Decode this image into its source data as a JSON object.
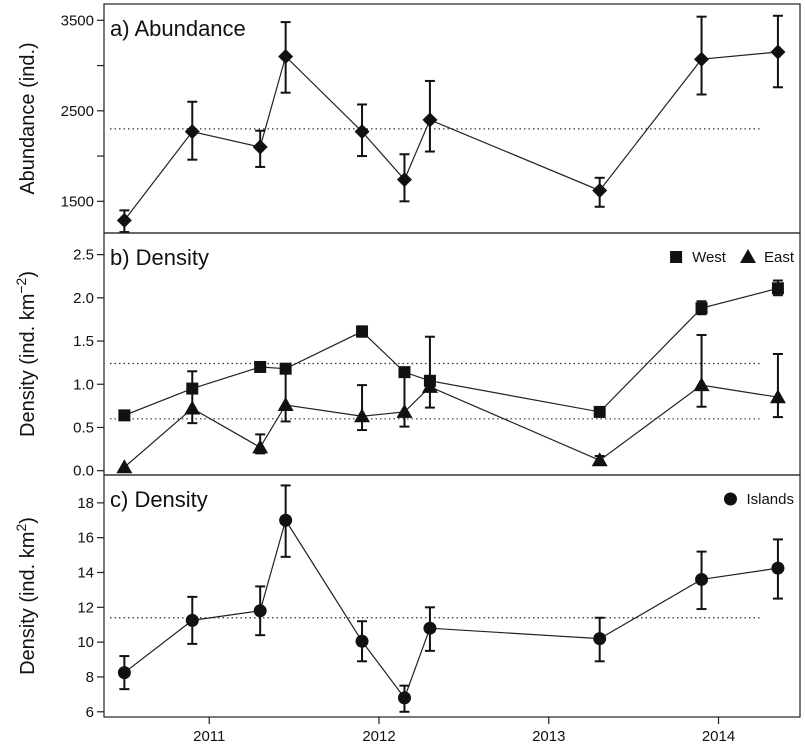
{
  "chart_data": [
    {
      "type": "line",
      "title": "a) Abundance",
      "ylabel": "Abundance (ind.)",
      "ylim": [
        1150,
        3680
      ],
      "yticks": [
        1500,
        2000,
        2500,
        3000,
        3500
      ],
      "yticklabels": [
        "1500",
        "",
        "2500",
        "",
        "3500"
      ],
      "reference_line": 2300,
      "series": [
        {
          "marker": "diamond",
          "x": [
            2010.5,
            2010.9,
            2011.3,
            2011.45,
            2011.9,
            2012.15,
            2012.3,
            2013.3,
            2013.9,
            2014.35
          ],
          "y": [
            1290,
            2270,
            2100,
            3100,
            2270,
            1740,
            2400,
            1620,
            3070,
            3150
          ],
          "err_low": [
            1160,
            1960,
            1880,
            2700,
            2000,
            1500,
            2050,
            1440,
            2680,
            2760
          ],
          "err_high": [
            1400,
            2600,
            2280,
            3480,
            2570,
            2020,
            2830,
            1760,
            3540,
            3550
          ]
        }
      ]
    },
    {
      "type": "line",
      "title": "b) Density",
      "ylabel": "Density (ind. km",
      "ylabel_sup": "−2",
      "ylabel_end": ")",
      "ylim": [
        -0.05,
        2.75
      ],
      "yticks": [
        0.0,
        0.5,
        1.0,
        1.5,
        2.0,
        2.5
      ],
      "yticklabels": [
        "0.0",
        "0.5",
        "1.0",
        "1.5",
        "2.0",
        "2.5"
      ],
      "reference_lines": [
        1.24,
        0.6
      ],
      "legend": {
        "placement": "top-right"
      },
      "series": [
        {
          "name": "West",
          "marker": "square",
          "x": [
            2010.5,
            2010.9,
            2011.3,
            2011.45,
            2011.9,
            2012.15,
            2012.3,
            2013.3,
            2013.9,
            2014.35
          ],
          "y": [
            0.64,
            0.95,
            1.2,
            1.18,
            1.61,
            1.14,
            1.04,
            0.68,
            1.88,
            2.11
          ],
          "err_low": [
            0.64,
            0.95,
            1.17,
            1.18,
            1.55,
            1.14,
            1.04,
            0.68,
            1.81,
            2.03
          ],
          "err_high": [
            0.64,
            0.95,
            1.23,
            1.18,
            1.67,
            1.14,
            1.04,
            0.68,
            1.96,
            2.2
          ]
        },
        {
          "name": "East",
          "marker": "triangle",
          "x": [
            2010.5,
            2010.9,
            2011.3,
            2011.45,
            2011.9,
            2012.15,
            2012.3,
            2013.3,
            2013.9,
            2014.35
          ],
          "y": [
            0.04,
            0.72,
            0.27,
            0.76,
            0.63,
            0.68,
            0.97,
            0.12,
            0.99,
            0.85
          ],
          "err_low": [
            0.04,
            0.55,
            0.2,
            0.57,
            0.47,
            0.51,
            0.73,
            0.08,
            0.74,
            0.62
          ],
          "err_high": [
            0.04,
            1.15,
            0.42,
            1.2,
            0.99,
            1.14,
            1.55,
            0.17,
            1.57,
            1.35
          ]
        }
      ]
    },
    {
      "type": "line",
      "title": "c) Density",
      "ylabel": "Density (ind. km",
      "ylabel_sup": "2",
      "ylabel_end": ")",
      "ylim": [
        5.7,
        19.6
      ],
      "yticks": [
        6,
        8,
        10,
        12,
        14,
        16,
        18
      ],
      "yticklabels": [
        "6",
        "8",
        "10",
        "12",
        "14",
        "16",
        "18"
      ],
      "reference_line": 11.4,
      "legend": {
        "placement": "top-right"
      },
      "xlim": [
        2010.38,
        2014.48
      ],
      "xticks": [
        2011,
        2012,
        2013,
        2014
      ],
      "xticklabels": [
        "2011",
        "2012",
        "2013",
        "2014"
      ],
      "series": [
        {
          "name": "Islands",
          "marker": "circle",
          "x": [
            2010.5,
            2010.9,
            2011.3,
            2011.45,
            2011.9,
            2012.15,
            2012.3,
            2013.3,
            2013.9,
            2014.35
          ],
          "y": [
            8.25,
            11.25,
            11.8,
            17.0,
            10.05,
            6.8,
            10.8,
            10.2,
            13.6,
            14.25
          ],
          "err_low": [
            7.3,
            9.9,
            10.4,
            14.9,
            8.9,
            6.0,
            9.5,
            8.9,
            11.9,
            12.5
          ],
          "err_high": [
            9.2,
            12.6,
            13.2,
            19.0,
            11.2,
            7.5,
            12.0,
            11.4,
            15.2,
            15.9
          ]
        }
      ]
    }
  ]
}
